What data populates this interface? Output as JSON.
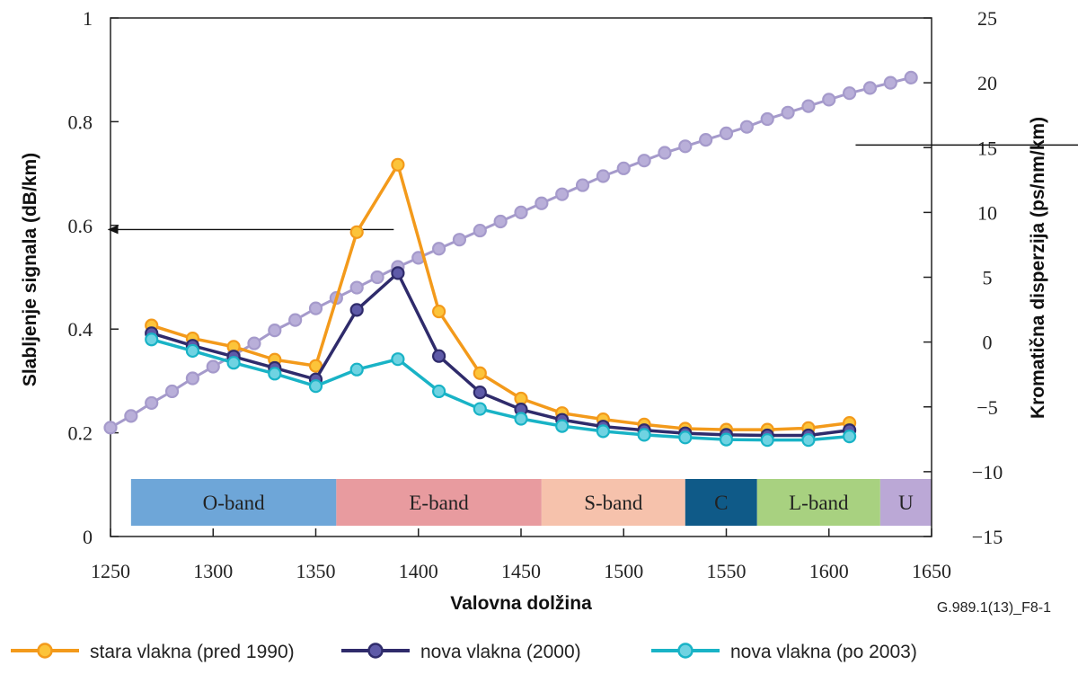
{
  "chart_data": {
    "type": "line",
    "ref_code": "G.989.1(13)_F8-1",
    "xlabel": "Valovna dolžina",
    "ylabel_left": "Slabljenje signala (dB/km)",
    "ylabel_right": "Kromatična disperzija (ps/nm/km)",
    "xlim": [
      1250,
      1650
    ],
    "x_ticks": [
      "1250",
      "1300",
      "1350",
      "1400",
      "1450",
      "1500",
      "1550",
      "1600",
      "1650"
    ],
    "ylim_left": [
      0,
      1
    ],
    "y_left_ticks": [
      "0",
      "0.2",
      "0.4",
      "0.6",
      "0.8",
      "1"
    ],
    "ylim_right": [
      -15,
      25
    ],
    "y_right_ticks": [
      "−15",
      "−10",
      "−5",
      "0",
      "5",
      "10",
      "15",
      "20",
      "25"
    ],
    "grid": false,
    "legend_position": "bottom",
    "bands": [
      {
        "label": "O-band",
        "start": 1260,
        "end": 1360,
        "color": "#6ea6d8"
      },
      {
        "label": "E-band",
        "start": 1360,
        "end": 1460,
        "color": "#e89b9f"
      },
      {
        "label": "S-band",
        "start": 1460,
        "end": 1530,
        "color": "#f6c2ac"
      },
      {
        "label": "C",
        "start": 1530,
        "end": 1565,
        "color": "#0f5a88"
      },
      {
        "label": "L-band",
        "start": 1565,
        "end": 1625,
        "color": "#a8d180"
      },
      {
        "label": "U",
        "start": 1625,
        "end": 1675,
        "color": "#bba8d6"
      }
    ],
    "series": [
      {
        "name": "stara vlakna (pred 1990)",
        "axis": "left",
        "color": "#f39a1b",
        "marker_fill": "#fcc43a",
        "x": [
          1270,
          1290,
          1310,
          1330,
          1350,
          1370,
          1390,
          1410,
          1430,
          1450,
          1470,
          1490,
          1510,
          1530,
          1550,
          1570,
          1590,
          1610
        ],
        "values": [
          0.407,
          0.382,
          0.366,
          0.341,
          0.329,
          0.587,
          0.717,
          0.434,
          0.315,
          0.266,
          0.238,
          0.226,
          0.216,
          0.208,
          0.206,
          0.206,
          0.209,
          0.219
        ]
      },
      {
        "name": "nova vlakna (2000)",
        "axis": "left",
        "color": "#2f2b6b",
        "marker_fill": "#5e5aa8",
        "x": [
          1270,
          1290,
          1310,
          1330,
          1350,
          1370,
          1390,
          1410,
          1430,
          1450,
          1470,
          1490,
          1510,
          1530,
          1550,
          1570,
          1590,
          1610
        ],
        "values": [
          0.392,
          0.368,
          0.347,
          0.325,
          0.303,
          0.437,
          0.508,
          0.348,
          0.278,
          0.245,
          0.225,
          0.212,
          0.205,
          0.199,
          0.196,
          0.195,
          0.195,
          0.205
        ]
      },
      {
        "name": "nova vlakna (po 2003)",
        "axis": "left",
        "color": "#19b3c6",
        "marker_fill": "#6fd3e2",
        "x": [
          1270,
          1290,
          1310,
          1330,
          1350,
          1370,
          1390,
          1410,
          1430,
          1450,
          1470,
          1490,
          1510,
          1530,
          1550,
          1570,
          1590,
          1610
        ],
        "values": [
          0.38,
          0.358,
          0.335,
          0.314,
          0.29,
          0.322,
          0.342,
          0.28,
          0.246,
          0.227,
          0.213,
          0.203,
          0.196,
          0.191,
          0.187,
          0.186,
          0.186,
          0.193
        ]
      },
      {
        "axis": "right",
        "color": "#a59acb",
        "marker_fill": "#b9afd9",
        "x_start": 1250,
        "x_step": 10,
        "values": [
          -6.6,
          -5.7,
          -4.7,
          -3.8,
          -2.8,
          -1.9,
          -1.0,
          -0.1,
          0.9,
          1.7,
          2.6,
          3.4,
          4.2,
          5.0,
          5.8,
          6.5,
          7.2,
          7.9,
          8.6,
          9.3,
          10.0,
          10.7,
          11.4,
          12.1,
          12.8,
          13.4,
          14.0,
          14.6,
          15.1,
          15.6,
          16.1,
          16.6,
          17.2,
          17.7,
          18.2,
          18.7,
          19.2,
          19.6,
          20.0,
          20.4
        ]
      }
    ],
    "annotations": [
      {
        "type": "arrow",
        "direction": "left",
        "points_to_axis": "left",
        "from": {
          "x": 1388,
          "y_left": 0.592
        },
        "to": {
          "x": 1249,
          "y_left": 0.592
        }
      },
      {
        "type": "arrow",
        "direction": "right",
        "points_to_axis": "right",
        "from": {
          "x": 1613,
          "y_right": 15.2
        },
        "to": {
          "x": 1777,
          "y_right": 15.2
        }
      }
    ]
  }
}
